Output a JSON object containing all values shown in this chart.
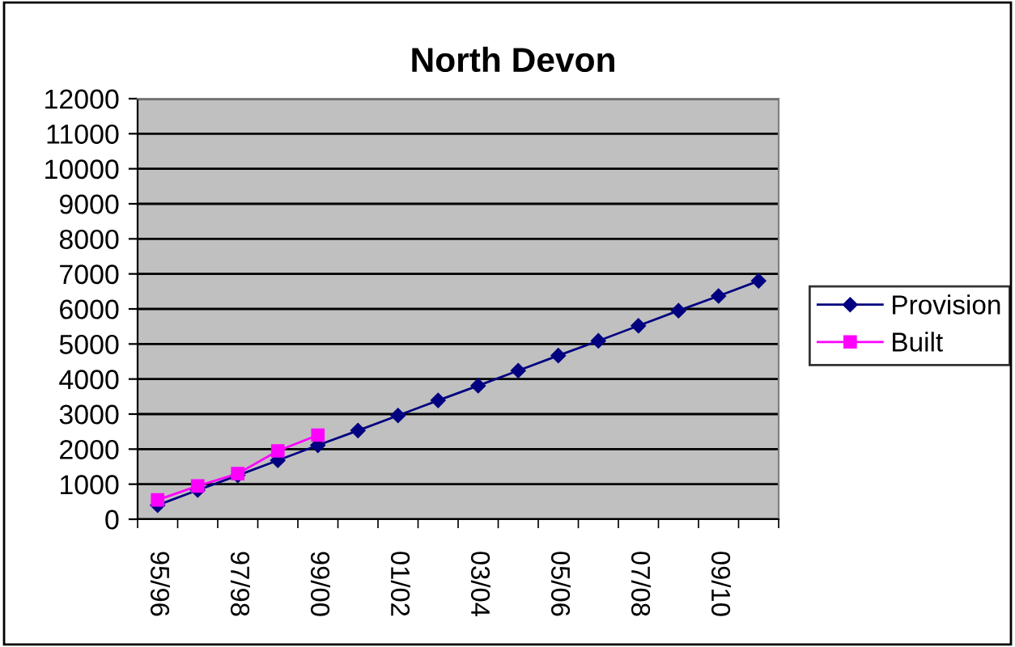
{
  "chart_data": {
    "type": "line",
    "title": "North Devon",
    "categories": [
      "95/96",
      null,
      "97/98",
      null,
      "99/00",
      null,
      "01/02",
      null,
      "03/04",
      null,
      "05/06",
      null,
      "07/08",
      null,
      "09/10",
      null
    ],
    "series": [
      {
        "name": "Provision",
        "color": "#000080",
        "marker": "diamond",
        "values": [
          400,
          830,
          1250,
          1680,
          2110,
          2530,
          2960,
          3390,
          3810,
          4240,
          4670,
          5090,
          5520,
          5950,
          6370,
          6800
        ]
      },
      {
        "name": "Built",
        "color": "#ff00ff",
        "marker": "square",
        "values": [
          550,
          950,
          1300,
          1950,
          2400,
          null,
          null,
          null,
          null,
          null,
          null,
          null,
          null,
          null,
          null,
          null
        ]
      }
    ],
    "ylim": [
      0,
      12000
    ],
    "yticks": [
      0,
      1000,
      2000,
      3000,
      4000,
      5000,
      6000,
      7000,
      8000,
      9000,
      10000,
      11000,
      12000
    ],
    "grid": "y",
    "legend": "right",
    "line_style": "solid"
  }
}
